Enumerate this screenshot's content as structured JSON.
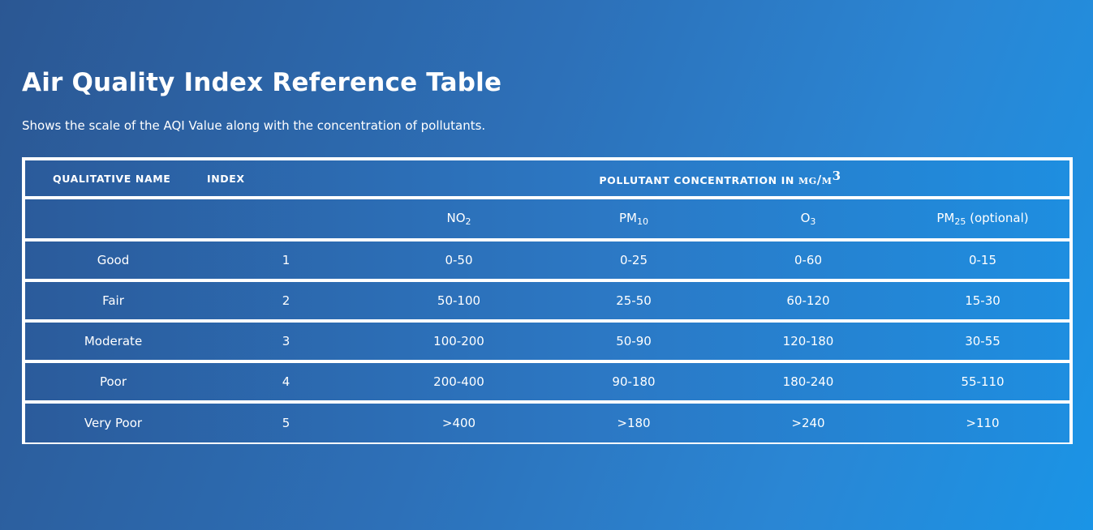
{
  "page": {
    "title": "Air Quality Index Reference Table",
    "subtitle": "Shows the scale of the AQI Value along with the concentration of pollutants."
  },
  "table": {
    "header_row1": {
      "qualitative_name": "QUALITATIVE NAME",
      "index": "INDEX",
      "concentration_prefix": "POLLUTANT CONCENTRATION IN ",
      "unit": "mg/m",
      "unit_power": "3"
    },
    "pollutants": [
      {
        "base": "NO",
        "sub": "2",
        "suffix": ""
      },
      {
        "base": "PM",
        "sub": "10",
        "suffix": ""
      },
      {
        "base": "O",
        "sub": "3",
        "suffix": ""
      },
      {
        "base": "PM",
        "sub": "25",
        "suffix": " (optional)"
      }
    ],
    "rows": [
      {
        "name": "Good",
        "index": "1",
        "no2": "0-50",
        "pm10": "0-25",
        "o3": "0-60",
        "pm25": "0-15"
      },
      {
        "name": "Fair",
        "index": "2",
        "no2": "50-100",
        "pm10": "25-50",
        "o3": "60-120",
        "pm25": "15-30"
      },
      {
        "name": "Moderate",
        "index": "3",
        "no2": "100-200",
        "pm10": "50-90",
        "o3": "120-180",
        "pm25": "30-55"
      },
      {
        "name": "Poor",
        "index": "4",
        "no2": "200-400",
        "pm10": "90-180",
        "o3": "180-240",
        "pm25": "55-110"
      },
      {
        "name": "Very Poor",
        "index": "5",
        "no2": ">400",
        "pm10": ">180",
        "o3": ">240",
        "pm25": ">110"
      }
    ]
  }
}
